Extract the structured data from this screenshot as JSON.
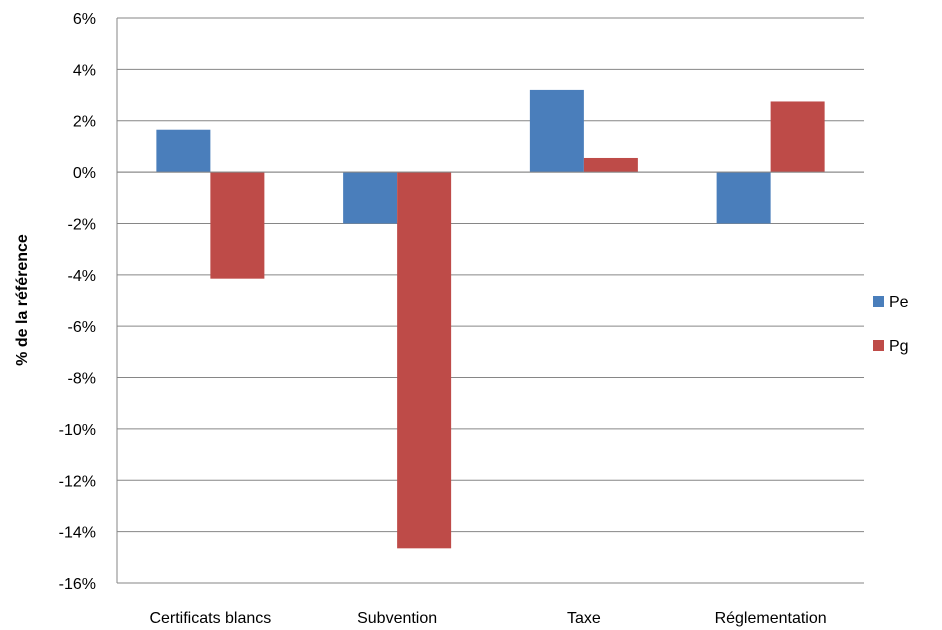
{
  "chart_data": {
    "type": "bar",
    "title": "",
    "xlabel": "",
    "ylabel": "% de la référence",
    "categories": [
      "Certificats blancs",
      "Subvention",
      "Taxe",
      "Réglementation"
    ],
    "series": [
      {
        "name": "Pe",
        "color": "#4a7ebb",
        "values": [
          1.65,
          -2.0,
          3.2,
          -2.0
        ]
      },
      {
        "name": "Pg",
        "color": "#be4b48",
        "values": [
          -4.15,
          -14.65,
          0.55,
          2.75
        ]
      }
    ],
    "ylim": [
      -16,
      6
    ],
    "yticks": [
      6,
      4,
      2,
      0,
      -2,
      -4,
      -6,
      -8,
      -10,
      -12,
      -14,
      -16
    ],
    "ytick_labels": [
      "6%",
      "4%",
      "2%",
      "0%",
      "-2%",
      "-4%",
      "-6%",
      "-8%",
      "-10%",
      "-12%",
      "-14%",
      "-16%"
    ],
    "grid": true,
    "legend_position": "right"
  }
}
